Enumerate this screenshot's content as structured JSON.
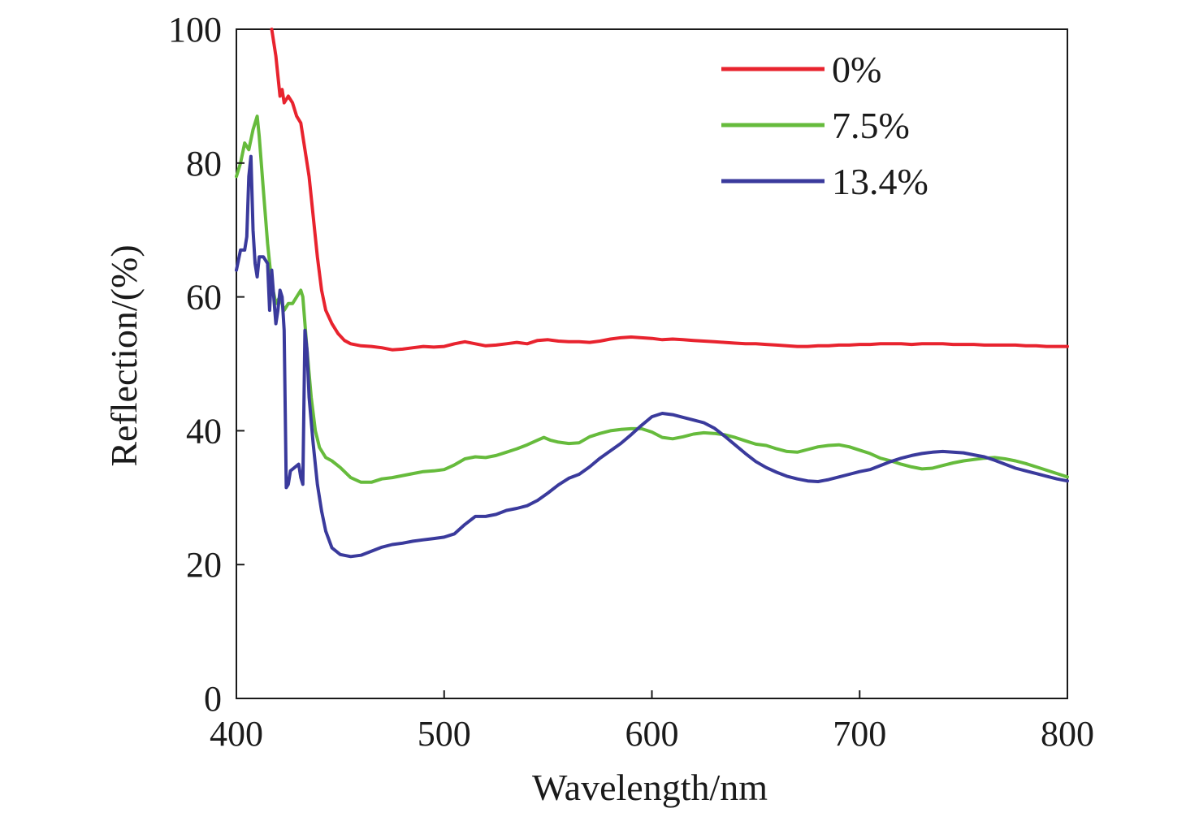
{
  "chart_data": {
    "type": "line",
    "xlabel": "Wavelength/nm",
    "ylabel": "Reflection/(%)",
    "xlim": [
      400,
      800
    ],
    "ylim": [
      0,
      100
    ],
    "xticks": [
      "400",
      "500",
      "600",
      "700",
      "800"
    ],
    "yticks": [
      "0",
      "20",
      "40",
      "60",
      "80",
      "100"
    ],
    "grid": false,
    "legend_position": "top-right",
    "series": [
      {
        "name": "0%",
        "color": "#e8232e",
        "points": [
          [
            417,
            100
          ],
          [
            419,
            96
          ],
          [
            421,
            90
          ],
          [
            422,
            91
          ],
          [
            423,
            89
          ],
          [
            425,
            90
          ],
          [
            427,
            89
          ],
          [
            429,
            87
          ],
          [
            431,
            86
          ],
          [
            433,
            82
          ],
          [
            435,
            78
          ],
          [
            437,
            72
          ],
          [
            439,
            66
          ],
          [
            441,
            61
          ],
          [
            443,
            58
          ],
          [
            446,
            56
          ],
          [
            449,
            54.5
          ],
          [
            452,
            53.5
          ],
          [
            455,
            53
          ],
          [
            460,
            52.7
          ],
          [
            465,
            52.6
          ],
          [
            470,
            52.4
          ],
          [
            475,
            52.1
          ],
          [
            480,
            52.2
          ],
          [
            485,
            52.4
          ],
          [
            490,
            52.6
          ],
          [
            495,
            52.5
          ],
          [
            500,
            52.6
          ],
          [
            505,
            53
          ],
          [
            510,
            53.3
          ],
          [
            515,
            53
          ],
          [
            520,
            52.7
          ],
          [
            525,
            52.8
          ],
          [
            530,
            53
          ],
          [
            535,
            53.2
          ],
          [
            540,
            53
          ],
          [
            545,
            53.5
          ],
          [
            550,
            53.6
          ],
          [
            555,
            53.4
          ],
          [
            560,
            53.3
          ],
          [
            565,
            53.3
          ],
          [
            570,
            53.2
          ],
          [
            575,
            53.4
          ],
          [
            580,
            53.7
          ],
          [
            585,
            53.9
          ],
          [
            590,
            54
          ],
          [
            595,
            53.9
          ],
          [
            600,
            53.8
          ],
          [
            605,
            53.6
          ],
          [
            610,
            53.7
          ],
          [
            615,
            53.6
          ],
          [
            620,
            53.5
          ],
          [
            625,
            53.4
          ],
          [
            630,
            53.3
          ],
          [
            635,
            53.2
          ],
          [
            640,
            53.1
          ],
          [
            645,
            53
          ],
          [
            650,
            53
          ],
          [
            655,
            52.9
          ],
          [
            660,
            52.8
          ],
          [
            665,
            52.7
          ],
          [
            670,
            52.6
          ],
          [
            675,
            52.6
          ],
          [
            680,
            52.7
          ],
          [
            685,
            52.7
          ],
          [
            690,
            52.8
          ],
          [
            695,
            52.8
          ],
          [
            700,
            52.9
          ],
          [
            705,
            52.9
          ],
          [
            710,
            53
          ],
          [
            715,
            53
          ],
          [
            720,
            53
          ],
          [
            725,
            52.9
          ],
          [
            730,
            53
          ],
          [
            735,
            53
          ],
          [
            740,
            53
          ],
          [
            745,
            52.9
          ],
          [
            750,
            52.9
          ],
          [
            755,
            52.9
          ],
          [
            760,
            52.8
          ],
          [
            765,
            52.8
          ],
          [
            770,
            52.8
          ],
          [
            775,
            52.8
          ],
          [
            780,
            52.7
          ],
          [
            785,
            52.7
          ],
          [
            790,
            52.6
          ],
          [
            795,
            52.6
          ],
          [
            800,
            52.6
          ]
        ]
      },
      {
        "name": "7.5%",
        "color": "#66bb3c",
        "points": [
          [
            400,
            78
          ],
          [
            402,
            80
          ],
          [
            404,
            83
          ],
          [
            406,
            82
          ],
          [
            408,
            85
          ],
          [
            410,
            87
          ],
          [
            411,
            84
          ],
          [
            413,
            76
          ],
          [
            415,
            68
          ],
          [
            417,
            62
          ],
          [
            419,
            59
          ],
          [
            421,
            60
          ],
          [
            423,
            58
          ],
          [
            425,
            59
          ],
          [
            427,
            59
          ],
          [
            429,
            60
          ],
          [
            431,
            61
          ],
          [
            432,
            60
          ],
          [
            434,
            52
          ],
          [
            436,
            45
          ],
          [
            438,
            40
          ],
          [
            440,
            37.5
          ],
          [
            443,
            36
          ],
          [
            446,
            35.5
          ],
          [
            450,
            34.5
          ],
          [
            455,
            33
          ],
          [
            460,
            32.3
          ],
          [
            465,
            32.3
          ],
          [
            470,
            32.8
          ],
          [
            475,
            33
          ],
          [
            480,
            33.3
          ],
          [
            485,
            33.6
          ],
          [
            490,
            33.9
          ],
          [
            495,
            34
          ],
          [
            500,
            34.2
          ],
          [
            505,
            34.9
          ],
          [
            510,
            35.8
          ],
          [
            515,
            36.1
          ],
          [
            520,
            36
          ],
          [
            525,
            36.3
          ],
          [
            530,
            36.8
          ],
          [
            535,
            37.3
          ],
          [
            540,
            37.9
          ],
          [
            545,
            38.6
          ],
          [
            548,
            39
          ],
          [
            551,
            38.6
          ],
          [
            555,
            38.3
          ],
          [
            560,
            38.1
          ],
          [
            565,
            38.2
          ],
          [
            570,
            39.1
          ],
          [
            575,
            39.6
          ],
          [
            580,
            40
          ],
          [
            585,
            40.2
          ],
          [
            590,
            40.3
          ],
          [
            595,
            40.3
          ],
          [
            600,
            39.8
          ],
          [
            605,
            39
          ],
          [
            610,
            38.8
          ],
          [
            615,
            39.1
          ],
          [
            620,
            39.5
          ],
          [
            625,
            39.7
          ],
          [
            630,
            39.6
          ],
          [
            635,
            39.4
          ],
          [
            640,
            39
          ],
          [
            645,
            38.5
          ],
          [
            650,
            38
          ],
          [
            655,
            37.8
          ],
          [
            660,
            37.3
          ],
          [
            665,
            36.9
          ],
          [
            670,
            36.8
          ],
          [
            675,
            37.2
          ],
          [
            680,
            37.6
          ],
          [
            685,
            37.8
          ],
          [
            690,
            37.9
          ],
          [
            695,
            37.6
          ],
          [
            700,
            37.1
          ],
          [
            705,
            36.6
          ],
          [
            710,
            35.9
          ],
          [
            715,
            35.5
          ],
          [
            720,
            35
          ],
          [
            725,
            34.6
          ],
          [
            730,
            34.3
          ],
          [
            735,
            34.4
          ],
          [
            740,
            34.8
          ],
          [
            745,
            35.2
          ],
          [
            750,
            35.5
          ],
          [
            755,
            35.7
          ],
          [
            760,
            35.9
          ],
          [
            765,
            36
          ],
          [
            770,
            35.8
          ],
          [
            775,
            35.5
          ],
          [
            780,
            35.1
          ],
          [
            785,
            34.6
          ],
          [
            790,
            34.1
          ],
          [
            795,
            33.6
          ],
          [
            800,
            33.1
          ]
        ]
      },
      {
        "name": "13.4%",
        "color": "#3a3a9c",
        "points": [
          [
            400,
            64
          ],
          [
            402,
            67
          ],
          [
            404,
            67
          ],
          [
            405,
            69
          ],
          [
            406,
            78
          ],
          [
            407,
            81
          ],
          [
            408,
            70
          ],
          [
            409,
            65
          ],
          [
            410,
            63
          ],
          [
            411,
            66
          ],
          [
            413,
            66
          ],
          [
            415,
            65
          ],
          [
            416,
            58
          ],
          [
            417,
            64
          ],
          [
            418,
            60
          ],
          [
            419,
            56
          ],
          [
            420,
            58
          ],
          [
            421,
            61
          ],
          [
            422,
            60
          ],
          [
            423,
            55
          ],
          [
            424,
            31.5
          ],
          [
            425,
            32
          ],
          [
            426,
            34
          ],
          [
            428,
            34.5
          ],
          [
            430,
            35
          ],
          [
            431,
            33
          ],
          [
            432,
            32
          ],
          [
            433,
            55
          ],
          [
            434,
            52
          ],
          [
            435,
            45
          ],
          [
            437,
            38
          ],
          [
            439,
            32
          ],
          [
            441,
            28
          ],
          [
            443,
            25
          ],
          [
            446,
            22.5
          ],
          [
            450,
            21.5
          ],
          [
            455,
            21.2
          ],
          [
            460,
            21.4
          ],
          [
            465,
            22
          ],
          [
            470,
            22.6
          ],
          [
            475,
            23
          ],
          [
            480,
            23.2
          ],
          [
            485,
            23.5
          ],
          [
            490,
            23.7
          ],
          [
            495,
            23.9
          ],
          [
            500,
            24.1
          ],
          [
            505,
            24.6
          ],
          [
            510,
            26
          ],
          [
            515,
            27.2
          ],
          [
            520,
            27.2
          ],
          [
            525,
            27.5
          ],
          [
            530,
            28.1
          ],
          [
            535,
            28.4
          ],
          [
            540,
            28.8
          ],
          [
            545,
            29.6
          ],
          [
            550,
            30.7
          ],
          [
            555,
            31.9
          ],
          [
            560,
            32.9
          ],
          [
            565,
            33.5
          ],
          [
            570,
            34.6
          ],
          [
            575,
            35.9
          ],
          [
            580,
            37
          ],
          [
            585,
            38.1
          ],
          [
            590,
            39.4
          ],
          [
            595,
            40.8
          ],
          [
            600,
            42.1
          ],
          [
            605,
            42.6
          ],
          [
            610,
            42.4
          ],
          [
            615,
            42
          ],
          [
            620,
            41.6
          ],
          [
            625,
            41.2
          ],
          [
            630,
            40.4
          ],
          [
            635,
            39.2
          ],
          [
            640,
            37.9
          ],
          [
            645,
            36.6
          ],
          [
            650,
            35.4
          ],
          [
            655,
            34.5
          ],
          [
            660,
            33.8
          ],
          [
            665,
            33.2
          ],
          [
            670,
            32.8
          ],
          [
            675,
            32.5
          ],
          [
            680,
            32.4
          ],
          [
            685,
            32.7
          ],
          [
            690,
            33.1
          ],
          [
            695,
            33.5
          ],
          [
            700,
            33.9
          ],
          [
            705,
            34.2
          ],
          [
            710,
            34.8
          ],
          [
            715,
            35.4
          ],
          [
            720,
            35.9
          ],
          [
            725,
            36.3
          ],
          [
            730,
            36.6
          ],
          [
            735,
            36.8
          ],
          [
            740,
            36.9
          ],
          [
            745,
            36.8
          ],
          [
            750,
            36.7
          ],
          [
            755,
            36.4
          ],
          [
            760,
            36.1
          ],
          [
            765,
            35.6
          ],
          [
            770,
            35
          ],
          [
            775,
            34.4
          ],
          [
            780,
            34
          ],
          [
            785,
            33.6
          ],
          [
            790,
            33.2
          ],
          [
            795,
            32.8
          ],
          [
            800,
            32.5
          ]
        ]
      }
    ]
  }
}
